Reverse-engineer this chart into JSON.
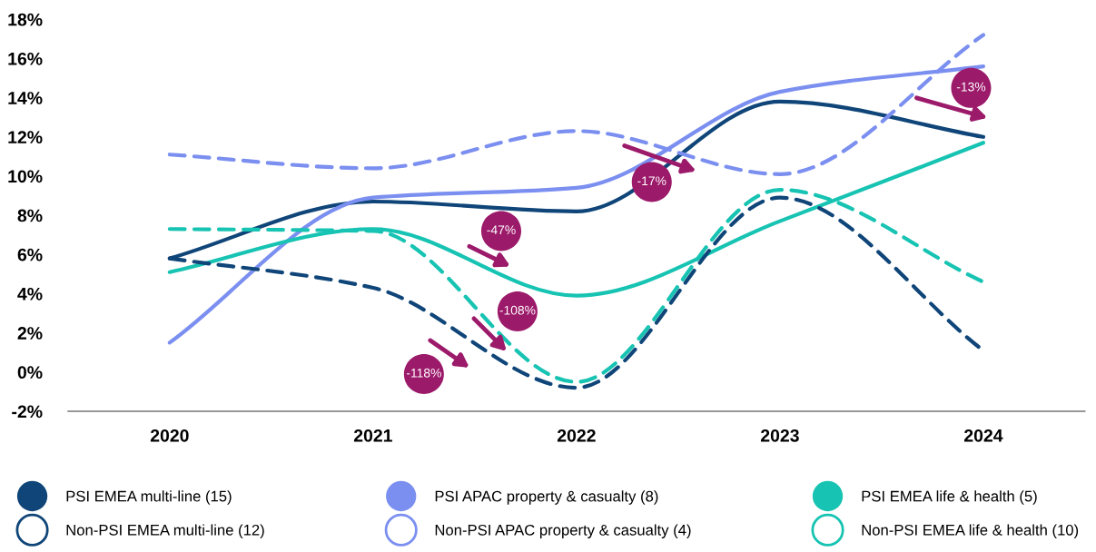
{
  "chart_data": {
    "type": "line",
    "x": [
      2020,
      2021,
      2022,
      2023,
      2024
    ],
    "xlim": [
      2019.5,
      2024.5
    ],
    "xticks": [
      2020,
      2021,
      2022,
      2023,
      2024
    ],
    "ylim": [
      -2,
      18
    ],
    "yticks": [
      {
        "value": -2,
        "label": "-2%"
      },
      {
        "value": 0,
        "label": "0%"
      },
      {
        "value": 2,
        "label": "2%"
      },
      {
        "value": 4,
        "label": "4%"
      },
      {
        "value": 6,
        "label": "6%"
      },
      {
        "value": 8,
        "label": "8%"
      },
      {
        "value": 10,
        "label": "10%"
      },
      {
        "value": 12,
        "label": "12%"
      },
      {
        "value": 14,
        "label": "14%"
      },
      {
        "value": 16,
        "label": "16%"
      },
      {
        "value": 18,
        "label": "18%"
      }
    ],
    "grid": false,
    "legend": "bottom",
    "marker": "none",
    "series": [
      {
        "name": "PSI EMEA multi-line (15)",
        "color": "#0f4578",
        "line_style": "solid",
        "values": [
          5.8,
          8.7,
          8.2,
          13.8,
          12.0
        ]
      },
      {
        "name": "PSI APAC property & casualty (8)",
        "color": "#7b8ff0",
        "line_style": "solid",
        "values": [
          1.5,
          8.9,
          9.4,
          14.3,
          15.6
        ]
      },
      {
        "name": "PSI EMEA life & health (5)",
        "color": "#17c3b2",
        "line_style": "solid",
        "values": [
          5.1,
          7.3,
          3.9,
          7.7,
          11.7
        ]
      },
      {
        "name": "Non-PSI EMEA multi-line (12)",
        "color": "#0f4578",
        "line_style": "dashed",
        "values": [
          5.8,
          4.3,
          -0.8,
          8.9,
          1.1
        ]
      },
      {
        "name": "Non-PSI APAC property & casualty (4)",
        "color": "#7b8ff0",
        "line_style": "dashed",
        "values": [
          11.1,
          10.4,
          12.3,
          10.1,
          17.2
        ]
      },
      {
        "name": "Non-PSI EMEA life & health (10)",
        "color": "#17c3b2",
        "line_style": "dashed",
        "values": [
          7.3,
          7.2,
          -0.5,
          9.3,
          4.6
        ]
      }
    ],
    "annotations": [
      "-118%",
      "-108%",
      "-47%",
      "-17%",
      "-13%"
    ]
  }
}
